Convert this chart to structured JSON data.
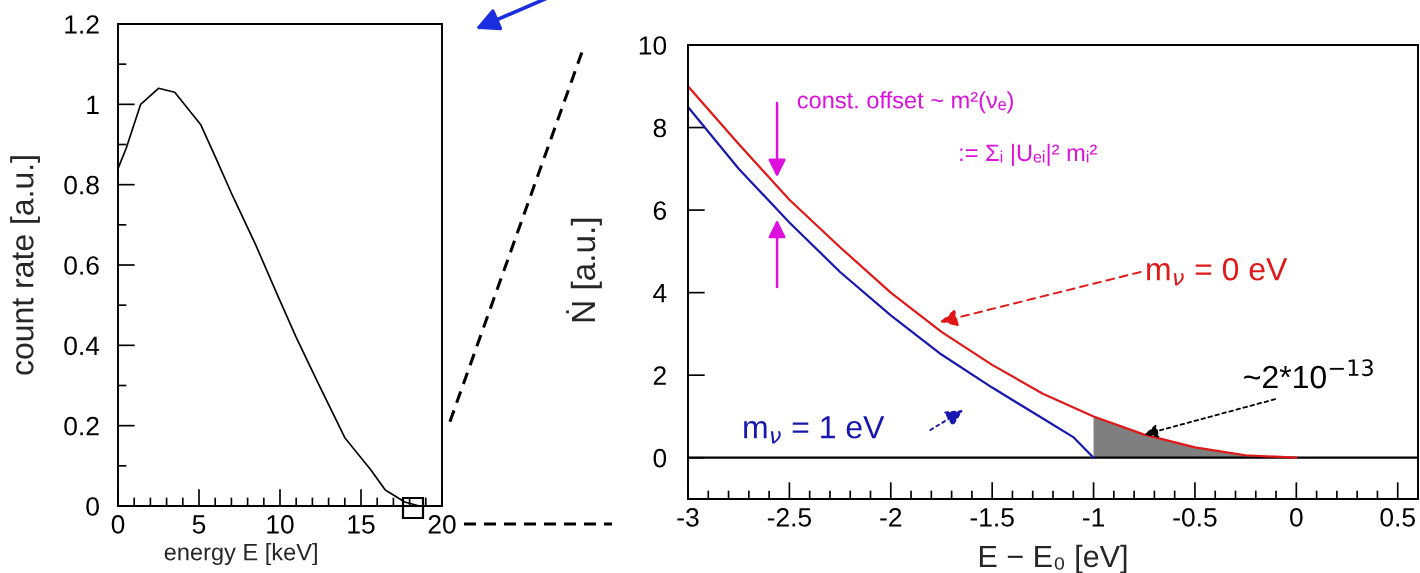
{
  "chart_data": [
    {
      "type": "line",
      "xlabel": "energy E [keV]",
      "ylabel": "count rate [a.u.]",
      "xlim": [
        0,
        20
      ],
      "ylim": [
        0,
        1.2
      ],
      "xticks": [
        0,
        5,
        10,
        15,
        20
      ],
      "yticks": [
        0,
        0.2,
        0.4,
        0.6,
        0.8,
        1,
        1.2
      ],
      "series": [
        {
          "color": "#000000",
          "x": [
            0,
            0.5,
            1.4,
            2.5,
            3.5,
            5.1,
            6.0,
            7.1,
            8.5,
            9.9,
            11.0,
            12.3,
            14.0,
            15.6,
            16.5,
            17.7,
            18.6
          ],
          "values": [
            0.84,
            0.89,
            1.0,
            1.04,
            1.03,
            0.95,
            0.87,
            0.77,
            0.65,
            0.52,
            0.42,
            0.31,
            0.17,
            0.09,
            0.04,
            0.01,
            0
          ]
        }
      ]
    },
    {
      "type": "line",
      "xlabel": "E − E₀ [eV]",
      "ylabel": "Ṅ [a.u.]",
      "xlim": [
        -3,
        0.6
      ],
      "ylim": [
        -1,
        10
      ],
      "xticks": [
        -3,
        -2.5,
        -2,
        -1.5,
        -1,
        -0.5,
        0,
        0.5
      ],
      "yticks": [
        0,
        2,
        4,
        6,
        8,
        10
      ],
      "series": [
        {
          "name": "m$_{ν}$ = 0 eV",
          "color": "#e01818",
          "x": [
            -3,
            -2.75,
            -2.5,
            -2.25,
            -2,
            -1.75,
            -1.5,
            -1.25,
            -1,
            -0.75,
            -0.5,
            -0.25,
            0
          ],
          "values": [
            9.0,
            7.6,
            6.25,
            5.1,
            4.0,
            3.05,
            2.25,
            1.55,
            1.0,
            0.56,
            0.25,
            0.06,
            0
          ]
        },
        {
          "name": "m$_{ν}$ = 1 eV",
          "color": "#1818b0",
          "x": [
            -3,
            -2.75,
            -2.5,
            -2.25,
            -2,
            -1.75,
            -1.5,
            -1.25,
            -1.1,
            -1
          ],
          "values": [
            8.5,
            7.0,
            5.7,
            4.5,
            3.45,
            2.5,
            1.7,
            0.95,
            0.5,
            0
          ]
        },
        {
          "type": "area",
          "color": "#7f7f7f",
          "x": [
            -1,
            -0.75,
            -0.5,
            -0.25,
            0
          ],
          "values": [
            1.0,
            0.56,
            0.25,
            0.06,
            0
          ]
        }
      ],
      "ref_lines": [
        {
          "axis": "y",
          "value": 0,
          "color": "#000000"
        }
      ],
      "annotations": [
        "const. offset ~ m²(νₑ)",
        ":= Σᵢ |Uₑᵢ|² mᵢ²",
        {
          "text": "~2*10$^{−13}$",
          "x": -0.75,
          "y": 0.56
        }
      ]
    }
  ]
}
